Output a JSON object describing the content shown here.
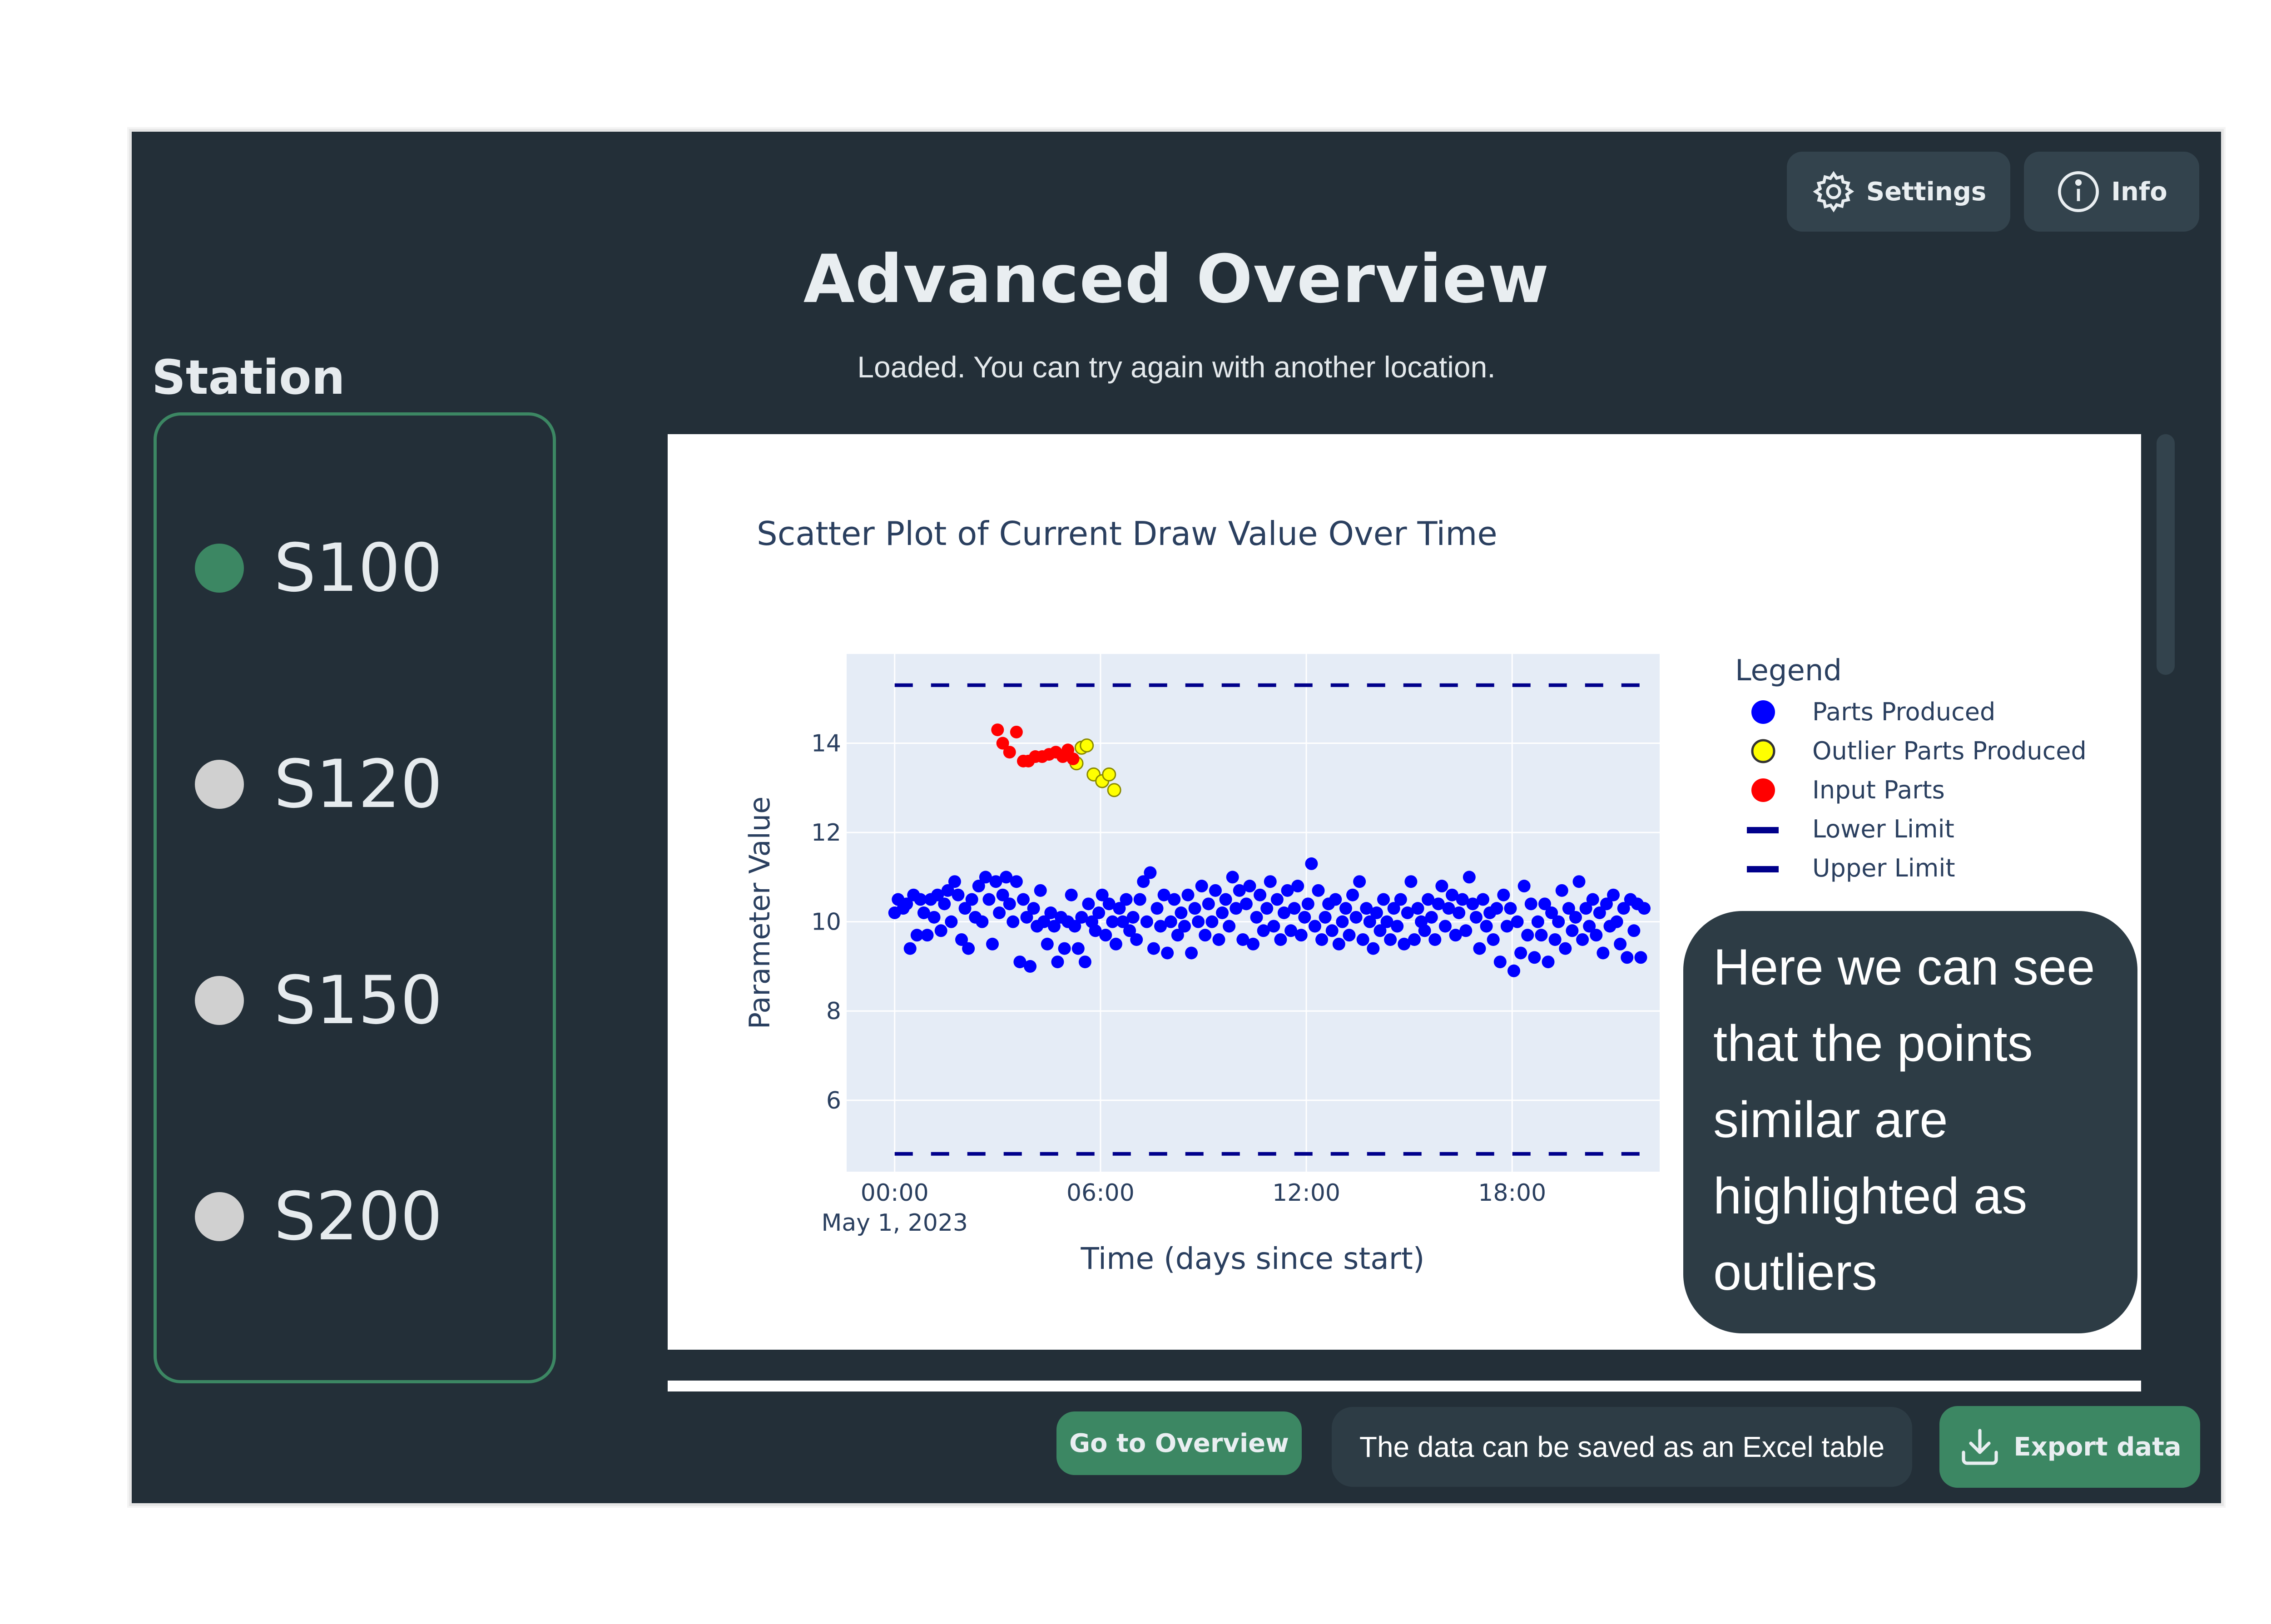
{
  "header": {
    "title": "Advanced Overview",
    "status": "Loaded. You can try again with another location.",
    "settings_label": "Settings",
    "info_label": "Info"
  },
  "sidebar": {
    "title": "Station",
    "stations": [
      {
        "label": "S100",
        "active": true
      },
      {
        "label": "S120",
        "active": false
      },
      {
        "label": "S150",
        "active": false
      },
      {
        "label": "S200",
        "active": false
      }
    ]
  },
  "colors": {
    "active_station": "#3c8763",
    "inactive_station": "#d0d0d0",
    "accent": "#3c8763",
    "panel": "#232f38"
  },
  "annotation": "Here we can see that the points similar are highlighted as outliers",
  "footer": {
    "overview_label": "Go to Overview",
    "excel_hint": "The data can be saved as an Excel table",
    "export_label": "Export data"
  },
  "chart_data": {
    "type": "scatter",
    "title": "Scatter Plot of Current Draw Value Over Time",
    "xlabel": "Time (days since start)",
    "ylabel": "Parameter Value",
    "x_tick_labels": [
      "00:00",
      "06:00",
      "12:00",
      "18:00"
    ],
    "x_tick_sublabel": "May 1, 2023",
    "y_ticks": [
      6,
      8,
      10,
      12,
      14
    ],
    "ylim": [
      4.4,
      16.0
    ],
    "xlim_hours": [
      -1.4,
      22.3
    ],
    "legend_title": "Legend",
    "legend_position": "right",
    "series": [
      {
        "name": "Parts Produced",
        "marker": "circle",
        "color": "#0000ff",
        "points": [
          [
            0.0,
            10.2
          ],
          [
            0.1,
            10.5
          ],
          [
            0.25,
            10.3
          ],
          [
            0.35,
            10.4
          ],
          [
            0.45,
            9.4
          ],
          [
            0.55,
            10.6
          ],
          [
            0.65,
            9.7
          ],
          [
            0.75,
            10.5
          ],
          [
            0.85,
            10.2
          ],
          [
            0.95,
            9.7
          ],
          [
            1.05,
            10.5
          ],
          [
            1.15,
            10.1
          ],
          [
            1.25,
            10.6
          ],
          [
            1.35,
            9.8
          ],
          [
            1.45,
            10.4
          ],
          [
            1.55,
            10.7
          ],
          [
            1.65,
            10.0
          ],
          [
            1.75,
            10.9
          ],
          [
            1.85,
            10.6
          ],
          [
            1.95,
            9.6
          ],
          [
            2.05,
            10.3
          ],
          [
            2.15,
            9.4
          ],
          [
            2.25,
            10.5
          ],
          [
            2.35,
            10.1
          ],
          [
            2.45,
            10.8
          ],
          [
            2.55,
            10.0
          ],
          [
            2.65,
            11.0
          ],
          [
            2.75,
            10.5
          ],
          [
            2.85,
            9.5
          ],
          [
            2.95,
            10.9
          ],
          [
            3.05,
            10.2
          ],
          [
            3.15,
            10.6
          ],
          [
            3.25,
            11.0
          ],
          [
            3.35,
            10.4
          ],
          [
            3.45,
            10.0
          ],
          [
            3.55,
            10.9
          ],
          [
            3.65,
            9.1
          ],
          [
            3.75,
            10.5
          ],
          [
            3.85,
            10.1
          ],
          [
            3.95,
            9.0
          ],
          [
            4.05,
            10.3
          ],
          [
            4.15,
            9.9
          ],
          [
            4.25,
            10.7
          ],
          [
            4.35,
            10.0
          ],
          [
            4.45,
            9.5
          ],
          [
            4.55,
            10.2
          ],
          [
            4.65,
            9.9
          ],
          [
            4.75,
            9.1
          ],
          [
            4.85,
            10.1
          ],
          [
            4.95,
            9.4
          ],
          [
            5.05,
            10.0
          ],
          [
            5.15,
            10.6
          ],
          [
            5.25,
            9.9
          ],
          [
            5.35,
            9.4
          ],
          [
            5.45,
            10.1
          ],
          [
            5.55,
            9.1
          ],
          [
            5.65,
            10.4
          ],
          [
            5.75,
            10.0
          ],
          [
            5.85,
            9.8
          ],
          [
            5.95,
            10.2
          ],
          [
            6.05,
            10.6
          ],
          [
            6.15,
            9.7
          ],
          [
            6.25,
            10.4
          ],
          [
            6.35,
            10.0
          ],
          [
            6.45,
            9.5
          ],
          [
            6.55,
            10.3
          ],
          [
            6.65,
            10.0
          ],
          [
            6.75,
            10.5
          ],
          [
            6.85,
            9.8
          ],
          [
            6.95,
            10.1
          ],
          [
            7.05,
            9.6
          ],
          [
            7.15,
            10.5
          ],
          [
            7.25,
            10.9
          ],
          [
            7.35,
            10.0
          ],
          [
            7.45,
            11.1
          ],
          [
            7.55,
            9.4
          ],
          [
            7.65,
            10.3
          ],
          [
            7.75,
            9.9
          ],
          [
            7.85,
            10.6
          ],
          [
            7.95,
            9.3
          ],
          [
            8.05,
            10.0
          ],
          [
            8.15,
            10.5
          ],
          [
            8.25,
            9.7
          ],
          [
            8.35,
            10.2
          ],
          [
            8.45,
            9.9
          ],
          [
            8.55,
            10.6
          ],
          [
            8.65,
            9.3
          ],
          [
            8.75,
            10.3
          ],
          [
            8.85,
            10.0
          ],
          [
            8.95,
            10.8
          ],
          [
            9.05,
            9.7
          ],
          [
            9.15,
            10.4
          ],
          [
            9.25,
            10.0
          ],
          [
            9.35,
            10.7
          ],
          [
            9.45,
            9.6
          ],
          [
            9.55,
            10.2
          ],
          [
            9.65,
            10.5
          ],
          [
            9.75,
            9.9
          ],
          [
            9.85,
            11.0
          ],
          [
            9.95,
            10.3
          ],
          [
            10.05,
            10.7
          ],
          [
            10.15,
            9.6
          ],
          [
            10.25,
            10.4
          ],
          [
            10.35,
            10.8
          ],
          [
            10.45,
            9.5
          ],
          [
            10.55,
            10.1
          ],
          [
            10.65,
            10.6
          ],
          [
            10.75,
            9.8
          ],
          [
            10.85,
            10.3
          ],
          [
            10.95,
            10.9
          ],
          [
            11.05,
            9.9
          ],
          [
            11.15,
            10.5
          ],
          [
            11.25,
            9.6
          ],
          [
            11.35,
            10.2
          ],
          [
            11.45,
            10.7
          ],
          [
            11.55,
            9.8
          ],
          [
            11.65,
            10.3
          ],
          [
            11.75,
            10.8
          ],
          [
            11.85,
            9.7
          ],
          [
            11.95,
            10.1
          ],
          [
            12.05,
            10.4
          ],
          [
            12.15,
            11.3
          ],
          [
            12.25,
            9.9
          ],
          [
            12.35,
            10.7
          ],
          [
            12.45,
            9.6
          ],
          [
            12.55,
            10.1
          ],
          [
            12.65,
            10.4
          ],
          [
            12.75,
            9.8
          ],
          [
            12.85,
            10.5
          ],
          [
            12.95,
            9.5
          ],
          [
            13.05,
            10.0
          ],
          [
            13.15,
            10.3
          ],
          [
            13.25,
            9.7
          ],
          [
            13.35,
            10.6
          ],
          [
            13.45,
            10.1
          ],
          [
            13.55,
            10.9
          ],
          [
            13.65,
            9.6
          ],
          [
            13.75,
            10.3
          ],
          [
            13.85,
            10.0
          ],
          [
            13.95,
            9.4
          ],
          [
            14.05,
            10.2
          ],
          [
            14.15,
            9.8
          ],
          [
            14.25,
            10.5
          ],
          [
            14.35,
            10.0
          ],
          [
            14.45,
            9.6
          ],
          [
            14.55,
            10.3
          ],
          [
            14.65,
            9.9
          ],
          [
            14.75,
            10.5
          ],
          [
            14.85,
            9.5
          ],
          [
            14.95,
            10.2
          ],
          [
            15.05,
            10.9
          ],
          [
            15.15,
            9.6
          ],
          [
            15.25,
            10.3
          ],
          [
            15.35,
            10.0
          ],
          [
            15.45,
            9.8
          ],
          [
            15.55,
            10.5
          ],
          [
            15.65,
            10.1
          ],
          [
            15.75,
            9.6
          ],
          [
            15.85,
            10.4
          ],
          [
            15.95,
            10.8
          ],
          [
            16.05,
            9.9
          ],
          [
            16.15,
            10.3
          ],
          [
            16.25,
            10.6
          ],
          [
            16.35,
            9.7
          ],
          [
            16.45,
            10.2
          ],
          [
            16.55,
            10.5
          ],
          [
            16.65,
            9.8
          ],
          [
            16.75,
            11.0
          ],
          [
            16.85,
            10.4
          ],
          [
            16.95,
            10.1
          ],
          [
            17.05,
            9.4
          ],
          [
            17.15,
            10.5
          ],
          [
            17.25,
            9.9
          ],
          [
            17.35,
            10.2
          ],
          [
            17.45,
            9.6
          ],
          [
            17.55,
            10.3
          ],
          [
            17.65,
            9.1
          ],
          [
            17.75,
            10.6
          ],
          [
            17.85,
            9.9
          ],
          [
            17.95,
            10.3
          ],
          [
            18.05,
            8.9
          ],
          [
            18.15,
            10.0
          ],
          [
            18.25,
            9.3
          ],
          [
            18.35,
            10.8
          ],
          [
            18.45,
            9.7
          ],
          [
            18.55,
            10.4
          ],
          [
            18.65,
            9.2
          ],
          [
            18.75,
            10.0
          ],
          [
            18.85,
            9.7
          ],
          [
            18.95,
            10.4
          ],
          [
            19.05,
            9.1
          ],
          [
            19.15,
            10.2
          ],
          [
            19.25,
            9.6
          ],
          [
            19.35,
            10.0
          ],
          [
            19.45,
            10.7
          ],
          [
            19.55,
            9.4
          ],
          [
            19.65,
            10.3
          ],
          [
            19.75,
            9.8
          ],
          [
            19.85,
            10.1
          ],
          [
            19.95,
            10.9
          ],
          [
            20.05,
            9.6
          ],
          [
            20.15,
            10.3
          ],
          [
            20.25,
            9.9
          ],
          [
            20.35,
            10.5
          ],
          [
            20.45,
            9.7
          ],
          [
            20.55,
            10.2
          ],
          [
            20.65,
            9.3
          ],
          [
            20.75,
            10.4
          ],
          [
            20.85,
            9.9
          ],
          [
            20.95,
            10.6
          ],
          [
            21.05,
            10.0
          ],
          [
            21.15,
            9.5
          ],
          [
            21.25,
            10.3
          ],
          [
            21.35,
            9.2
          ],
          [
            21.45,
            10.5
          ],
          [
            21.55,
            9.8
          ],
          [
            21.65,
            10.4
          ],
          [
            21.75,
            9.2
          ],
          [
            21.85,
            10.3
          ]
        ]
      },
      {
        "name": "Outlier Parts Produced",
        "marker": "circle-open",
        "color": "#ffff00",
        "points": [
          [
            5.45,
            13.9
          ],
          [
            5.6,
            13.95
          ],
          [
            5.3,
            13.55
          ],
          [
            5.8,
            13.3
          ],
          [
            6.05,
            13.15
          ],
          [
            6.25,
            13.3
          ],
          [
            6.4,
            12.95
          ]
        ]
      },
      {
        "name": "Input Parts",
        "marker": "circle",
        "color": "#ff0000",
        "points": [
          [
            3.0,
            14.3
          ],
          [
            3.15,
            14.0
          ],
          [
            3.35,
            13.8
          ],
          [
            3.55,
            14.25
          ],
          [
            3.75,
            13.6
          ],
          [
            3.9,
            13.6
          ],
          [
            4.1,
            13.7
          ],
          [
            4.3,
            13.7
          ],
          [
            4.5,
            13.75
          ],
          [
            4.7,
            13.8
          ],
          [
            4.9,
            13.7
          ],
          [
            5.05,
            13.85
          ],
          [
            5.2,
            13.65
          ]
        ]
      },
      {
        "name": "Lower Limit",
        "marker": "dash",
        "color": "#00008b",
        "value": 4.8
      },
      {
        "name": "Upper Limit",
        "marker": "dash",
        "color": "#00008b",
        "value": 15.3
      }
    ]
  }
}
